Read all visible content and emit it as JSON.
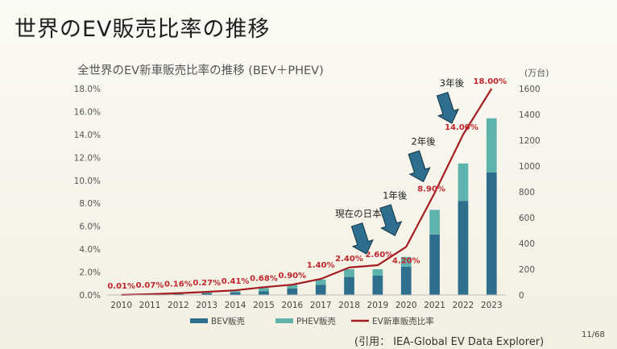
{
  "slide": {
    "title": "世界のEV販売比率の推移",
    "citation": "(引用： IEA-Global EV Data Explorer)",
    "page_number": "11/68"
  },
  "chart_data": {
    "type": "bar+line",
    "title": "全世界のEV新車販売比率の推移 (BEV＋PHEV)",
    "categories": [
      "2010",
      "2011",
      "2012",
      "2013",
      "2014",
      "2015",
      "2016",
      "2017",
      "2018",
      "2019",
      "2020",
      "2021",
      "2022",
      "2023"
    ],
    "y_left": {
      "min": 0,
      "max": 18,
      "step": 2,
      "tick_labels": [
        "0.0%",
        "2.0%",
        "4.0%",
        "6.0%",
        "8.0%",
        "10.0%",
        "12.0%",
        "14.0%",
        "16.0%",
        "18.0%"
      ]
    },
    "y_right": {
      "min": 0,
      "max": 1600,
      "step": 200,
      "tick_labels": [
        "0",
        "200",
        "400",
        "600",
        "800",
        "1000",
        "1200",
        "1400",
        "1600"
      ],
      "unit": "(万台)"
    },
    "series": [
      {
        "name": "BEV販売",
        "kind": "bar",
        "axis": "right",
        "color": "#2f6f8e",
        "values": [
          1,
          4,
          8,
          13,
          20,
          30,
          50,
          80,
          140,
          150,
          220,
          470,
          730,
          950
        ]
      },
      {
        "name": "PHEV販売",
        "kind": "bar",
        "axis": "right",
        "color": "#5fb3ad",
        "values": [
          0,
          1,
          5,
          8,
          11,
          25,
          30,
          40,
          60,
          50,
          75,
          190,
          290,
          420
        ]
      },
      {
        "name": "EV新車販売比率",
        "kind": "line",
        "axis": "left",
        "color": "#a41c22",
        "values": [
          0.01,
          0.07,
          0.16,
          0.27,
          0.41,
          0.68,
          0.9,
          1.4,
          2.4,
          2.6,
          4.2,
          8.9,
          14.0,
          18.0
        ],
        "data_labels": [
          "0.01%",
          "0.07%",
          "0.16%",
          "0.27%",
          "0.41%",
          "0.68%",
          "0.90%",
          "1.40%",
          "2.40%",
          "2.60%",
          "4.20%",
          "8.90%",
          "14.00%",
          "18.00%"
        ]
      }
    ],
    "annotations": [
      {
        "text": "現在の日本",
        "category": "2019"
      },
      {
        "text": "1年後",
        "category": "2020"
      },
      {
        "text": "2年後",
        "category": "2021"
      },
      {
        "text": "3年後",
        "category": "2022"
      }
    ],
    "legend_placement": "bottom",
    "grid": false
  }
}
